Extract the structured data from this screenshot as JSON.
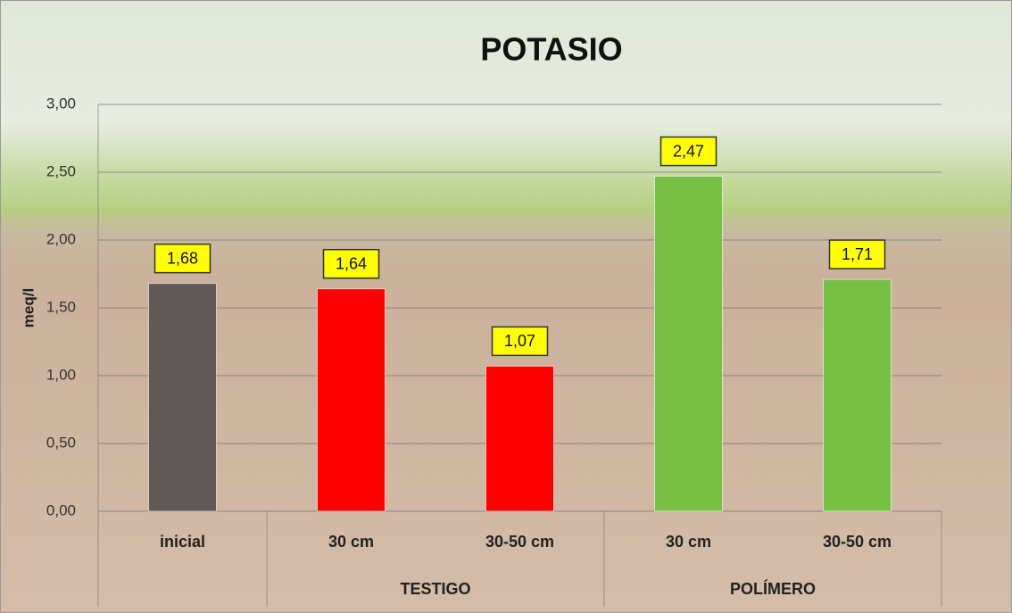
{
  "chart_data": {
    "type": "bar",
    "title": "POTASIO",
    "y_label": "meq/l",
    "categories": [
      "inicial",
      "30 cm",
      "30-50 cm",
      "30 cm",
      "30-50 cm"
    ],
    "groups": [
      {
        "label": null,
        "count": 1
      },
      {
        "label": "TESTIGO",
        "count": 2
      },
      {
        "label": "POLÍMERO",
        "count": 2
      }
    ],
    "values": [
      1.68,
      1.64,
      1.07,
      2.47,
      1.71
    ],
    "value_labels": [
      "1,68",
      "1,64",
      "1,07",
      "2,47",
      "1,71"
    ],
    "colors": [
      "#5f5957",
      "#ff0000",
      "#ff0000",
      "#77c043",
      "#77c043"
    ],
    "ylim": [
      0,
      3
    ],
    "yticks": [
      {
        "value": 0,
        "label": "0,00"
      },
      {
        "value": 0.5,
        "label": "0,50"
      },
      {
        "value": 1,
        "label": "1,00"
      },
      {
        "value": 1.5,
        "label": "1,50"
      },
      {
        "value": 2,
        "label": "2,00"
      },
      {
        "value": 2.5,
        "label": "2,50"
      },
      {
        "value": 3,
        "label": "3,00"
      }
    ],
    "grid": true
  }
}
